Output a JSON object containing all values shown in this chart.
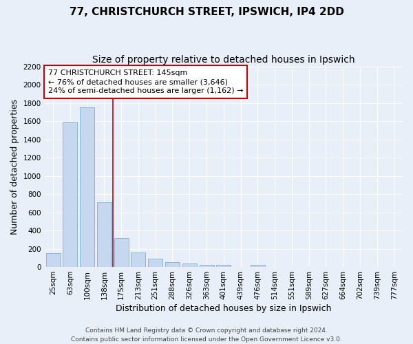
{
  "title1": "77, CHRISTCHURCH STREET, IPSWICH, IP4 2DD",
  "title2": "Size of property relative to detached houses in Ipswich",
  "xlabel": "Distribution of detached houses by size in Ipswich",
  "ylabel": "Number of detached properties",
  "categories": [
    "25sqm",
    "63sqm",
    "100sqm",
    "138sqm",
    "175sqm",
    "213sqm",
    "251sqm",
    "288sqm",
    "326sqm",
    "363sqm",
    "401sqm",
    "439sqm",
    "476sqm",
    "514sqm",
    "551sqm",
    "589sqm",
    "627sqm",
    "664sqm",
    "702sqm",
    "739sqm",
    "777sqm"
  ],
  "values": [
    155,
    1590,
    1755,
    710,
    315,
    160,
    90,
    55,
    35,
    25,
    20,
    0,
    20,
    0,
    0,
    0,
    0,
    0,
    0,
    0,
    0
  ],
  "bar_color": "#c5d8f0",
  "bar_edge_color": "#7aafd4",
  "vline_color": "#cc0000",
  "vline_x": 3.5,
  "annotation_text": "77 CHRISTCHURCH STREET: 145sqm\n← 76% of detached houses are smaller (3,646)\n24% of semi-detached houses are larger (1,162) →",
  "annotation_box_facecolor": "white",
  "annotation_box_edgecolor": "#cc0000",
  "ylim": [
    0,
    2200
  ],
  "yticks": [
    0,
    200,
    400,
    600,
    800,
    1000,
    1200,
    1400,
    1600,
    1800,
    2000,
    2200
  ],
  "footnote": "Contains HM Land Registry data © Crown copyright and database right 2024.\nContains public sector information licensed under the Open Government Licence v3.0.",
  "bg_color": "#e8eff8",
  "grid_color": "#ffffff",
  "title1_fontsize": 11,
  "title2_fontsize": 10,
  "axis_label_fontsize": 9,
  "tick_fontsize": 7.5,
  "annot_fontsize": 8,
  "footnote_fontsize": 6.5
}
